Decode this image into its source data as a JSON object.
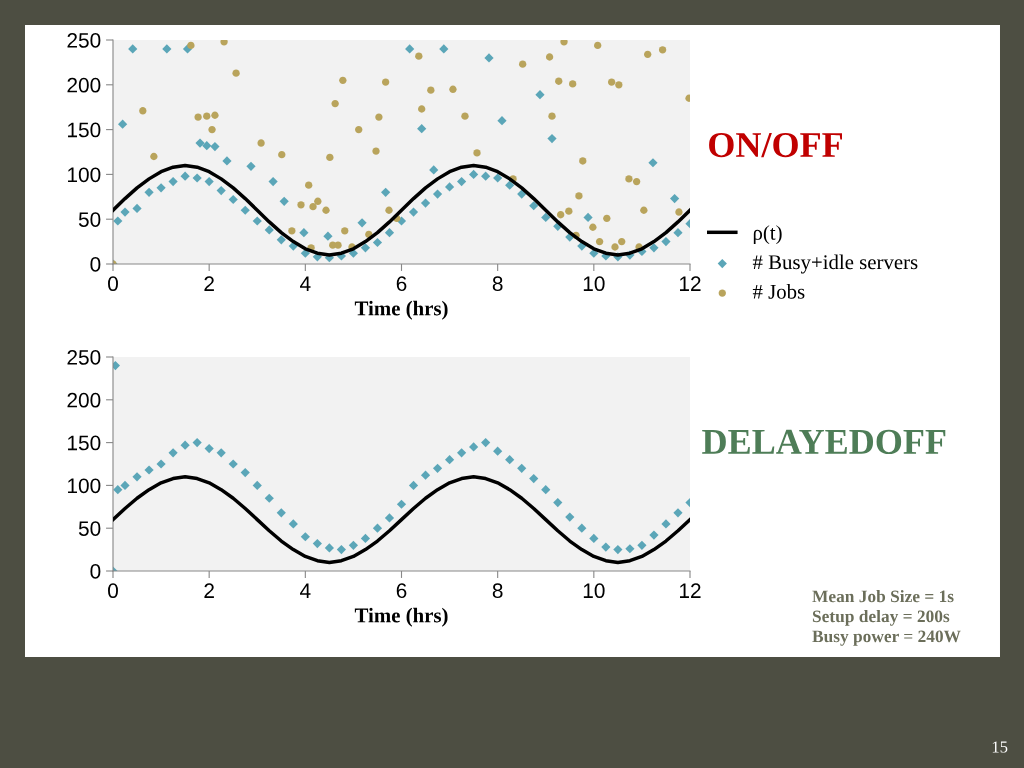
{
  "chart_data": [
    {
      "type": "scatter",
      "title": "ON/OFF",
      "xlabel": "Time (hrs)",
      "xlim": [
        0,
        12
      ],
      "xticks": [
        0,
        2,
        4,
        6,
        8,
        10,
        12
      ],
      "ylim": [
        0,
        250
      ],
      "yticks": [
        0,
        50,
        100,
        150,
        200,
        250
      ],
      "grid": false,
      "legend": "right",
      "series": [
        {
          "name": "ρ(t)",
          "type": "line",
          "color": "#000000",
          "marker": "none",
          "x": [
            0,
            0.25,
            0.5,
            0.75,
            1,
            1.25,
            1.5,
            1.75,
            2,
            2.25,
            2.5,
            2.75,
            3,
            3.25,
            3.5,
            3.75,
            4,
            4.25,
            4.5,
            4.75,
            5,
            5.25,
            5.5,
            5.75,
            6,
            6.25,
            6.5,
            6.75,
            7,
            7.25,
            7.5,
            7.75,
            8,
            8.25,
            8.5,
            8.75,
            9,
            9.25,
            9.5,
            9.75,
            10,
            10.25,
            10.5,
            10.75,
            11,
            11.25,
            11.5,
            11.75,
            12
          ],
          "values": [
            60,
            73,
            85,
            95,
            103,
            108,
            110,
            108,
            103,
            95,
            85,
            73,
            60,
            47,
            35,
            25,
            17,
            12,
            10,
            12,
            17,
            25,
            35,
            47,
            60,
            73,
            85,
            95,
            103,
            108,
            110,
            108,
            103,
            95,
            85,
            73,
            60,
            47,
            35,
            25,
            17,
            12,
            10,
            12,
            17,
            25,
            35,
            47,
            60
          ]
        },
        {
          "name": "# Busy+idle servers",
          "type": "scatter",
          "color": "#5ba6b8",
          "marker": "diamond",
          "x": [
            0,
            0.1,
            0.25,
            0.5,
            0.75,
            1,
            1.25,
            1.5,
            1.75,
            2,
            2.25,
            2.5,
            2.75,
            3,
            3.25,
            3.5,
            3.75,
            4,
            4.25,
            4.5,
            4.75,
            5,
            5.25,
            5.5,
            5.75,
            6,
            6.25,
            6.5,
            6.75,
            7,
            7.25,
            7.5,
            7.75,
            8,
            8.25,
            8.5,
            8.75,
            9,
            9.25,
            9.5,
            9.75,
            10,
            10.25,
            10.5,
            10.75,
            11,
            11.25,
            11.5,
            11.75,
            12,
            0.41,
            1.12,
            1.55,
            0.2,
            1.81,
            1.95,
            2.12,
            2.37,
            2.87,
            3.33,
            3.56,
            5.67,
            5.18,
            4.47,
            3.97,
            6.17,
            6.88,
            7.82,
            6.42,
            8.09,
            8.88,
            9.13,
            11.23,
            6.67,
            11.68,
            9.88
          ],
          "values": [
            0,
            48,
            58,
            62,
            80,
            85,
            92,
            98,
            96,
            92,
            82,
            72,
            60,
            48,
            38,
            27,
            20,
            12,
            8,
            7,
            9,
            12,
            18,
            24,
            35,
            48,
            58,
            68,
            78,
            86,
            92,
            100,
            98,
            96,
            88,
            78,
            65,
            52,
            42,
            30,
            20,
            12,
            9,
            8,
            10,
            14,
            18,
            25,
            35,
            45,
            240,
            240,
            240,
            156,
            135,
            132,
            131,
            115,
            109,
            92,
            70,
            80,
            46,
            31,
            35,
            240,
            240,
            230,
            151,
            160,
            189,
            140,
            113,
            105,
            73,
            52
          ]
        },
        {
          "name": "# Jobs",
          "type": "scatter",
          "color": "#b9a45c",
          "marker": "circle",
          "x": [
            0,
            1.62,
            2.31,
            2.56,
            0.62,
            0.85,
            1.77,
            1.95,
            2.12,
            2.06,
            3.08,
            3.51,
            4.07,
            3.91,
            4.16,
            4.26,
            4.43,
            3.72,
            4.12,
            4.57,
            4.68,
            4.82,
            4.97,
            4.51,
            4.62,
            4.78,
            5.11,
            5.47,
            5.53,
            5.67,
            5.74,
            5.32,
            5.9,
            6.36,
            6.42,
            6.61,
            7.07,
            7.32,
            7.57,
            8.32,
            8.52,
            9.08,
            9.38,
            9.27,
            9.56,
            9.13,
            10.08,
            10.37,
            10.52,
            11.12,
            11.43,
            11.98,
            9.77,
            9.69,
            9.48,
            9.31,
            9.98,
            10.27,
            10.73,
            10.89,
            11.04,
            9.63,
            10.12,
            10.58,
            10.44,
            10.94,
            11.77
          ],
          "values": [
            0,
            244,
            248,
            213,
            171,
            120,
            164,
            165,
            166,
            150,
            135,
            122,
            88,
            66,
            64,
            70,
            60,
            37,
            18,
            21,
            21,
            37,
            19,
            119,
            179,
            205,
            150,
            126,
            164,
            203,
            60,
            33,
            51,
            232,
            173,
            194,
            195,
            165,
            124,
            95,
            223,
            231,
            248,
            204,
            201,
            165,
            244,
            203,
            200,
            234,
            239,
            185,
            115,
            76,
            59,
            55,
            41,
            51,
            95,
            92,
            60,
            32,
            25,
            25,
            19,
            19,
            58
          ]
        }
      ]
    },
    {
      "type": "scatter",
      "title": "DELAYEDOFF",
      "xlabel": "Time (hrs)",
      "xlim": [
        0,
        12
      ],
      "xticks": [
        0,
        2,
        4,
        6,
        8,
        10,
        12
      ],
      "ylim": [
        0,
        250
      ],
      "yticks": [
        0,
        50,
        100,
        150,
        200,
        250
      ],
      "grid": false,
      "legend": false,
      "annotations": [
        "Mean Job Size = 1s\nSetup delay = 200s\nBusy power = 240W",
        "15"
      ],
      "series": [
        {
          "type": "line",
          "color": "#000000",
          "marker": "none",
          "x": [
            0,
            0.25,
            0.5,
            0.75,
            1,
            1.25,
            1.5,
            1.75,
            2,
            2.25,
            2.5,
            2.75,
            3,
            3.25,
            3.5,
            3.75,
            4,
            4.25,
            4.5,
            4.75,
            5,
            5.25,
            5.5,
            5.75,
            6,
            6.25,
            6.5,
            6.75,
            7,
            7.25,
            7.5,
            7.75,
            8,
            8.25,
            8.5,
            8.75,
            9,
            9.25,
            9.5,
            9.75,
            10,
            10.25,
            10.5,
            10.75,
            11,
            11.25,
            11.5,
            11.75,
            12
          ],
          "values": [
            60,
            73,
            85,
            95,
            103,
            108,
            110,
            108,
            103,
            95,
            85,
            73,
            60,
            47,
            35,
            25,
            17,
            12,
            10,
            12,
            17,
            25,
            35,
            47,
            60,
            73,
            85,
            95,
            103,
            108,
            110,
            108,
            103,
            95,
            85,
            73,
            60,
            47,
            35,
            25,
            17,
            12,
            10,
            12,
            17,
            25,
            35,
            47,
            60
          ]
        },
        {
          "type": "scatter",
          "color": "#5ba6b8",
          "marker": "diamond",
          "x": [
            0,
            0.05,
            0.1,
            0.25,
            0.5,
            0.75,
            1,
            1.25,
            1.5,
            1.75,
            2,
            2.25,
            2.5,
            2.75,
            3,
            3.25,
            3.5,
            3.75,
            4,
            4.25,
            4.5,
            4.75,
            5,
            5.25,
            5.5,
            5.75,
            6,
            6.25,
            6.5,
            6.75,
            7,
            7.25,
            7.5,
            7.75,
            8,
            8.25,
            8.5,
            8.75,
            9,
            9.25,
            9.5,
            9.75,
            10,
            10.25,
            10.5,
            10.75,
            11,
            11.25,
            11.5,
            11.75,
            12
          ],
          "values": [
            0,
            240,
            95,
            100,
            110,
            118,
            125,
            138,
            147,
            150,
            143,
            138,
            125,
            115,
            100,
            85,
            68,
            55,
            40,
            32,
            27,
            25,
            30,
            38,
            50,
            62,
            78,
            100,
            112,
            120,
            130,
            138,
            145,
            150,
            140,
            130,
            120,
            108,
            95,
            80,
            63,
            50,
            38,
            28,
            25,
            26,
            30,
            42,
            55,
            68,
            80
          ]
        }
      ]
    }
  ]
}
